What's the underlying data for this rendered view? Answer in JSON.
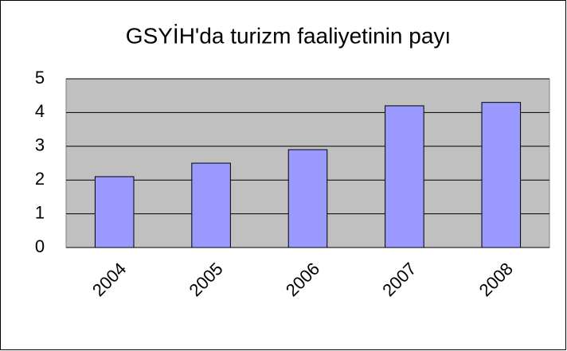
{
  "chart_data": {
    "type": "bar",
    "title": "GSYİH'da turizm faaliyetinin payı",
    "categories": [
      "2004",
      "2005",
      "2006",
      "2007",
      "2008"
    ],
    "values": [
      2.1,
      2.5,
      2.9,
      4.2,
      4.3
    ],
    "color": "#9999ff",
    "ylim": [
      0,
      5
    ],
    "yticks": [
      0,
      1,
      2,
      3,
      4,
      5
    ],
    "grid": true
  }
}
